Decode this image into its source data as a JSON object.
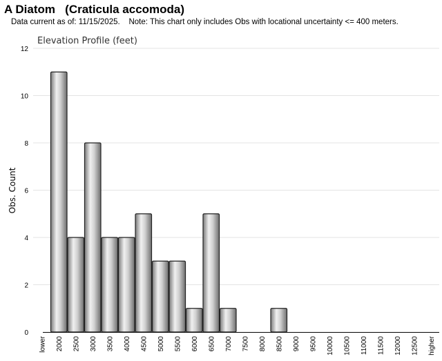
{
  "header": {
    "title": "A Diatom   (Craticula accomoda)",
    "note": "Data current as of: 11/15/2025.    Note: This chart only includes Obs with locational uncertainty <= 400 meters."
  },
  "chart_data": {
    "type": "bar",
    "title": "Elevation Profile (feet)",
    "xlabel": "",
    "ylabel": "Obs. Count",
    "ylim": [
      0,
      12
    ],
    "yticks": [
      0,
      2,
      4,
      6,
      8,
      10,
      12
    ],
    "grid": true,
    "legend": "none",
    "categories": [
      "lower",
      "2000",
      "2500",
      "3000",
      "3500",
      "4000",
      "4500",
      "5000",
      "5500",
      "6000",
      "6500",
      "7000",
      "7500",
      "8000",
      "8500",
      "9000",
      "9500",
      "10000",
      "10500",
      "11000",
      "11500",
      "12000",
      "12500",
      "higher"
    ],
    "values": [
      0,
      11,
      4,
      8,
      4,
      4,
      5,
      3,
      3,
      1,
      5,
      1,
      0,
      0,
      1,
      0,
      0,
      0,
      0,
      0,
      0,
      0,
      0,
      0
    ],
    "bar_color": "#b5b5b5",
    "bar_edge_color": "#222222"
  }
}
